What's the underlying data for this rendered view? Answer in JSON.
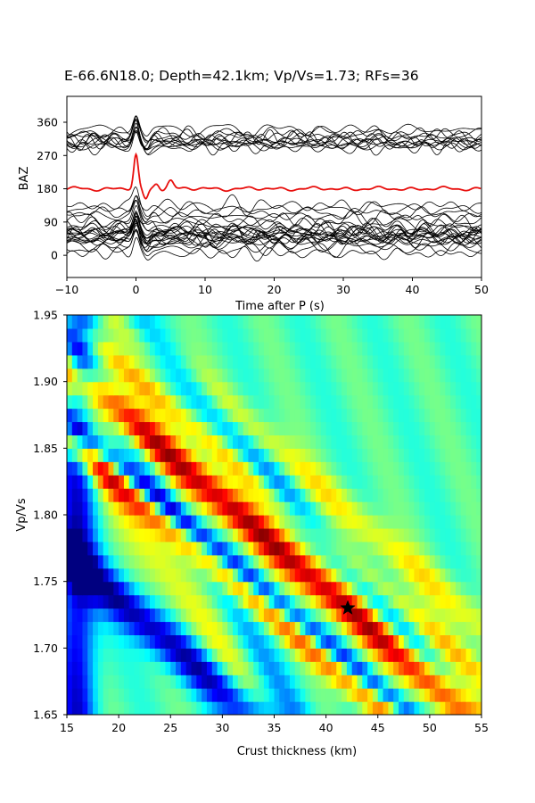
{
  "title": "E-66.6N18.0; Depth=42.1km; Vp/Vs=1.73; RFs=36",
  "chart_data": [
    {
      "type": "line",
      "panel": "receiver-functions",
      "xlabel": "Time after P (s)",
      "ylabel": "BAZ",
      "xlim": [
        -10,
        50
      ],
      "ylim": [
        -60,
        430
      ],
      "x_ticks": [
        -10,
        0,
        10,
        20,
        30,
        40,
        50
      ],
      "x_tick_labels": [
        "−10",
        "0",
        "10",
        "20",
        "30",
        "40",
        "50"
      ],
      "y_ticks": [
        0,
        90,
        180,
        270,
        360
      ],
      "y_tick_labels": [
        "0",
        "90",
        "180",
        "270",
        "360"
      ],
      "trace_count": 36,
      "trace_baz": [
        5,
        18,
        28,
        35,
        38,
        42,
        45,
        48,
        50,
        52,
        55,
        58,
        60,
        62,
        65,
        68,
        72,
        78,
        85,
        95,
        105,
        115,
        125,
        135,
        290,
        295,
        300,
        303,
        305,
        308,
        310,
        315,
        320,
        325,
        330,
        340
      ],
      "trace_color": "#000000",
      "stack": {
        "baz": 180,
        "color": "#e8100e",
        "peak_time": 0,
        "peak_value": 270
      },
      "grid": false,
      "legend": "none"
    },
    {
      "type": "heatmap",
      "panel": "h-kappa-stack",
      "xlabel": "Crust thickness (km)",
      "ylabel": "Vp/Vs",
      "xlim": [
        15,
        55
      ],
      "ylim": [
        1.65,
        1.95
      ],
      "x_ticks": [
        15,
        20,
        25,
        30,
        35,
        40,
        45,
        50,
        55
      ],
      "x_tick_labels": [
        "15",
        "20",
        "25",
        "30",
        "35",
        "40",
        "45",
        "50",
        "55"
      ],
      "y_ticks": [
        1.65,
        1.7,
        1.75,
        1.8,
        1.85,
        1.9,
        1.95
      ],
      "y_tick_labels": [
        "1.65",
        "1.70",
        "1.75",
        "1.80",
        "1.85",
        "1.90",
        "1.95"
      ],
      "colormap": "jet",
      "best_fit": {
        "H": 42.1,
        "k": 1.73,
        "marker": "star",
        "color": "#000000"
      },
      "grid": false
    }
  ]
}
